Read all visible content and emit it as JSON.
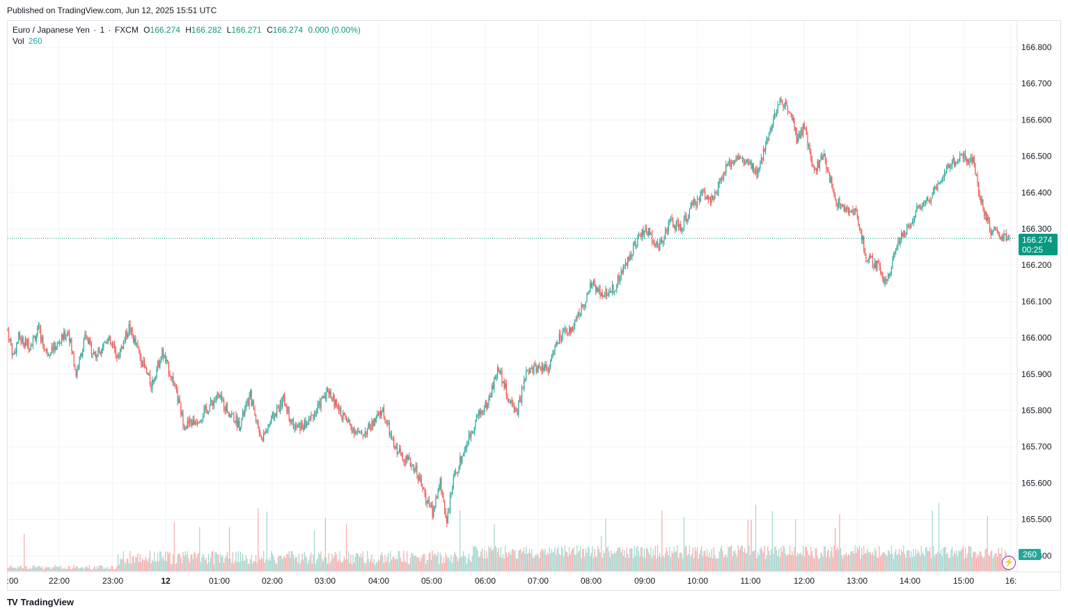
{
  "header": {
    "published": "Published on TradingView.com, Jun 12, 2025 15:51 UTC"
  },
  "legend": {
    "symbol": "Euro / Japanese Yen",
    "interval": "1",
    "exchange": "FXCM",
    "o_label": "O",
    "o": "166.274",
    "h_label": "H",
    "h": "166.282",
    "l_label": "L",
    "l": "166.271",
    "c_label": "C",
    "c": "166.274",
    "change": "0.000 (0.00%)",
    "vol_label": "Vol",
    "vol": "260"
  },
  "price_tag": {
    "price": "166.274",
    "countdown": "00:25"
  },
  "vol_tag": "260",
  "brand": {
    "name": "TradingView",
    "logo": "TV"
  },
  "colors": {
    "up": "#26a69a",
    "down": "#ef5350",
    "up_vol": "#9fd6d0",
    "down_vol": "#f7a9a7",
    "price_line": "#089981"
  },
  "icons": {
    "bolt": "lightning-icon"
  },
  "chart_data": {
    "type": "candlestick",
    "symbol": "Euro / Japanese Yen",
    "interval": "1 minute",
    "ylim": [
      165.38,
      166.84
    ],
    "y_ticks": [
      "166.800",
      "166.700",
      "166.600",
      "166.500",
      "166.400",
      "166.300",
      "166.200",
      "166.100",
      "166.000",
      "165.900",
      "165.800",
      "165.700",
      "165.600",
      "165.500",
      "165.400"
    ],
    "x_ticks": [
      ":00",
      "22:00",
      "23:00",
      "12",
      "01:00",
      "02:00",
      "03:00",
      "04:00",
      "05:00",
      "06:00",
      "07:00",
      "08:00",
      "09:00",
      "10:00",
      "11:00",
      "12:00",
      "13:00",
      "14:00",
      "15:00",
      "16:"
    ],
    "last_price": 166.274,
    "close_path": [
      {
        "t": 0,
        "p": 166.02
      },
      {
        "t": 5,
        "p": 165.95
      },
      {
        "t": 10,
        "p": 166.0
      },
      {
        "t": 20,
        "p": 165.98
      },
      {
        "t": 28,
        "p": 166.02
      },
      {
        "t": 35,
        "p": 165.96
      },
      {
        "t": 45,
        "p": 165.98
      },
      {
        "t": 55,
        "p": 166.02
      },
      {
        "t": 62,
        "p": 165.9
      },
      {
        "t": 70,
        "p": 166.0
      },
      {
        "t": 80,
        "p": 165.95
      },
      {
        "t": 90,
        "p": 166.0
      },
      {
        "t": 100,
        "p": 165.95
      },
      {
        "t": 110,
        "p": 166.03
      },
      {
        "t": 120,
        "p": 165.95
      },
      {
        "t": 130,
        "p": 165.87
      },
      {
        "t": 140,
        "p": 165.96
      },
      {
        "t": 150,
        "p": 165.88
      },
      {
        "t": 160,
        "p": 165.76
      },
      {
        "t": 170,
        "p": 165.77
      },
      {
        "t": 180,
        "p": 165.8
      },
      {
        "t": 190,
        "p": 165.84
      },
      {
        "t": 200,
        "p": 165.8
      },
      {
        "t": 210,
        "p": 165.76
      },
      {
        "t": 220,
        "p": 165.84
      },
      {
        "t": 230,
        "p": 165.72
      },
      {
        "t": 240,
        "p": 165.78
      },
      {
        "t": 250,
        "p": 165.83
      },
      {
        "t": 260,
        "p": 165.75
      },
      {
        "t": 270,
        "p": 165.76
      },
      {
        "t": 280,
        "p": 165.8
      },
      {
        "t": 290,
        "p": 165.86
      },
      {
        "t": 300,
        "p": 165.8
      },
      {
        "t": 310,
        "p": 165.76
      },
      {
        "t": 320,
        "p": 165.73
      },
      {
        "t": 330,
        "p": 165.76
      },
      {
        "t": 340,
        "p": 165.8
      },
      {
        "t": 350,
        "p": 165.7
      },
      {
        "t": 360,
        "p": 165.67
      },
      {
        "t": 370,
        "p": 165.64
      },
      {
        "t": 380,
        "p": 165.55
      },
      {
        "t": 385,
        "p": 165.52
      },
      {
        "t": 392,
        "p": 165.6
      },
      {
        "t": 398,
        "p": 165.5
      },
      {
        "t": 405,
        "p": 165.62
      },
      {
        "t": 415,
        "p": 165.7
      },
      {
        "t": 425,
        "p": 165.78
      },
      {
        "t": 435,
        "p": 165.82
      },
      {
        "t": 445,
        "p": 165.92
      },
      {
        "t": 455,
        "p": 165.82
      },
      {
        "t": 462,
        "p": 165.8
      },
      {
        "t": 470,
        "p": 165.9
      },
      {
        "t": 480,
        "p": 165.92
      },
      {
        "t": 490,
        "p": 165.92
      },
      {
        "t": 500,
        "p": 166.0
      },
      {
        "t": 510,
        "p": 166.02
      },
      {
        "t": 520,
        "p": 166.08
      },
      {
        "t": 530,
        "p": 166.15
      },
      {
        "t": 540,
        "p": 166.12
      },
      {
        "t": 550,
        "p": 166.14
      },
      {
        "t": 560,
        "p": 166.2
      },
      {
        "t": 568,
        "p": 166.26
      },
      {
        "t": 578,
        "p": 166.3
      },
      {
        "t": 590,
        "p": 166.25
      },
      {
        "t": 600,
        "p": 166.32
      },
      {
        "t": 610,
        "p": 166.3
      },
      {
        "t": 620,
        "p": 166.36
      },
      {
        "t": 630,
        "p": 166.4
      },
      {
        "t": 640,
        "p": 166.38
      },
      {
        "t": 650,
        "p": 166.46
      },
      {
        "t": 660,
        "p": 166.5
      },
      {
        "t": 670,
        "p": 166.48
      },
      {
        "t": 680,
        "p": 166.45
      },
      {
        "t": 690,
        "p": 166.57
      },
      {
        "t": 700,
        "p": 166.65
      },
      {
        "t": 710,
        "p": 166.63
      },
      {
        "t": 715,
        "p": 166.55
      },
      {
        "t": 722,
        "p": 166.58
      },
      {
        "t": 730,
        "p": 166.46
      },
      {
        "t": 740,
        "p": 166.5
      },
      {
        "t": 750,
        "p": 166.38
      },
      {
        "t": 760,
        "p": 166.35
      },
      {
        "t": 770,
        "p": 166.34
      },
      {
        "t": 778,
        "p": 166.22
      },
      {
        "t": 788,
        "p": 166.2
      },
      {
        "t": 796,
        "p": 166.15
      },
      {
        "t": 805,
        "p": 166.25
      },
      {
        "t": 815,
        "p": 166.3
      },
      {
        "t": 825,
        "p": 166.36
      },
      {
        "t": 835,
        "p": 166.38
      },
      {
        "t": 845,
        "p": 166.44
      },
      {
        "t": 855,
        "p": 166.48
      },
      {
        "t": 865,
        "p": 166.5
      },
      {
        "t": 875,
        "p": 166.49
      },
      {
        "t": 882,
        "p": 166.38
      },
      {
        "t": 890,
        "p": 166.3
      },
      {
        "t": 900,
        "p": 166.28
      },
      {
        "t": 908,
        "p": 166.274
      }
    ],
    "volume_scale_max": 200
  }
}
